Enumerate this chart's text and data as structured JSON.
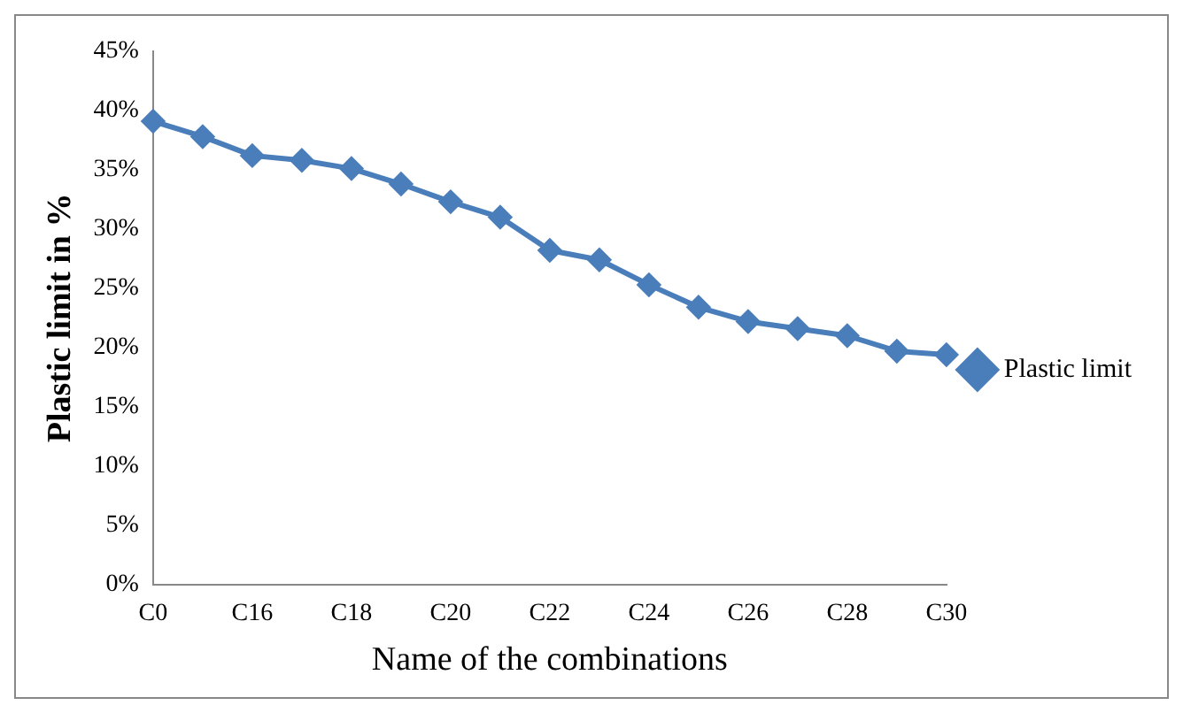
{
  "chart_data": {
    "type": "line",
    "xlabel": "Name of the combinations",
    "ylabel": "Plastic limit in %",
    "categories": [
      "C0",
      null,
      "C16",
      null,
      "C18",
      null,
      "C20",
      null,
      "C22",
      null,
      "C24",
      null,
      "C26",
      null,
      "C28",
      null,
      "C30"
    ],
    "series": [
      {
        "name": "Plastic limit",
        "color": "#4a7ebb",
        "values": [
          39.1,
          37.8,
          36.2,
          35.8,
          35.1,
          33.8,
          32.3,
          31.0,
          28.2,
          27.4,
          25.3,
          23.4,
          22.2,
          21.6,
          21.0,
          19.7,
          19.4
        ]
      }
    ],
    "ylim": [
      0,
      45
    ],
    "yticks": [
      {
        "value": 0,
        "label": "0%"
      },
      {
        "value": 5,
        "label": "5%"
      },
      {
        "value": 10,
        "label": "10%"
      },
      {
        "value": 15,
        "label": "15%"
      },
      {
        "value": 20,
        "label": "20%"
      },
      {
        "value": 25,
        "label": "25%"
      },
      {
        "value": 30,
        "label": "30%"
      },
      {
        "value": 35,
        "label": "35%"
      },
      {
        "value": 40,
        "label": "40%"
      },
      {
        "value": 45,
        "label": "45%"
      }
    ],
    "grid": false,
    "legend": "right",
    "marker": "diamond",
    "line_style": "solid"
  }
}
